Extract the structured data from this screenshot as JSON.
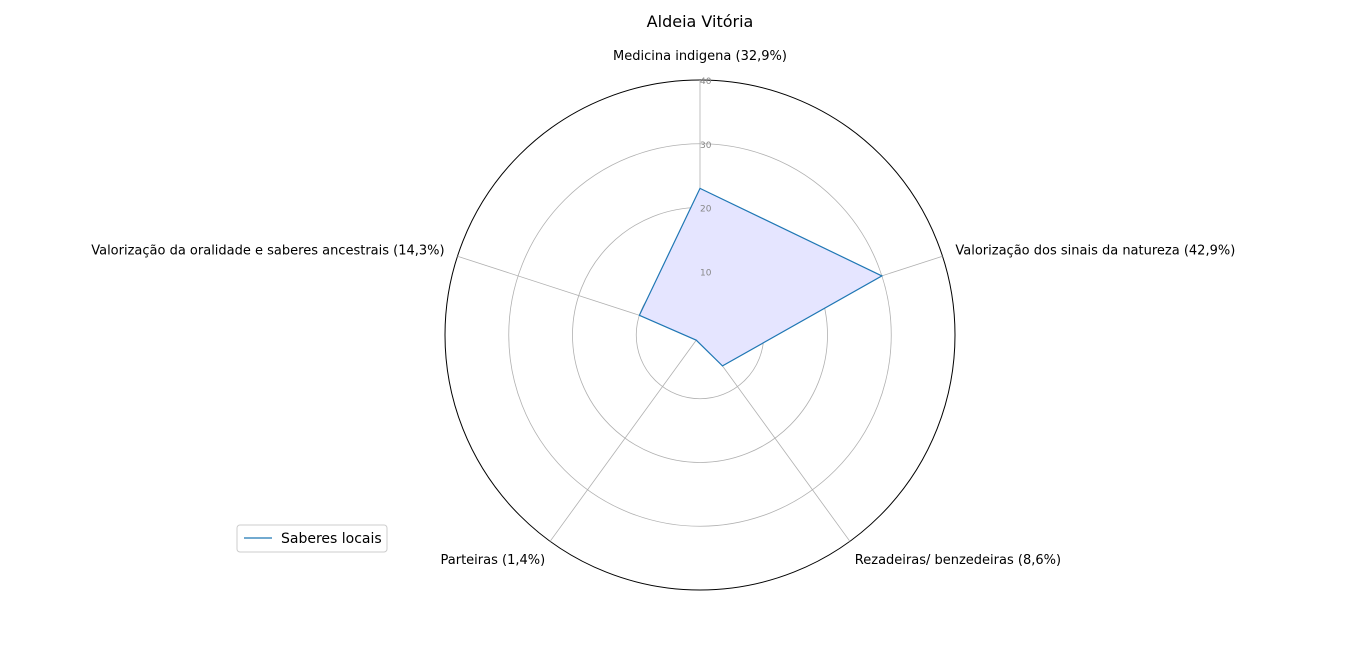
{
  "chart_data": {
    "type": "radar",
    "title": "Aldeia Vitória",
    "categories": [
      "Medicina indigena (32,9%)",
      "Valorização dos sinais da natureza (42,9%)",
      "Rezadeiras/ benzedeiras (8,6%)",
      "Parteiras (1,4%)",
      "Valorização da oralidade e saberes ancestrais (14,3%)"
    ],
    "series": [
      {
        "name": "Saberes locais",
        "values": [
          23,
          30,
          6,
          1,
          10
        ],
        "line_color": "#1f77b4",
        "fill_color": "#e5e5ff"
      }
    ],
    "radial_ticks": [
      10,
      20,
      30,
      40
    ],
    "rlim": [
      0,
      40
    ],
    "grid": true,
    "legend_position": "lower-left"
  }
}
